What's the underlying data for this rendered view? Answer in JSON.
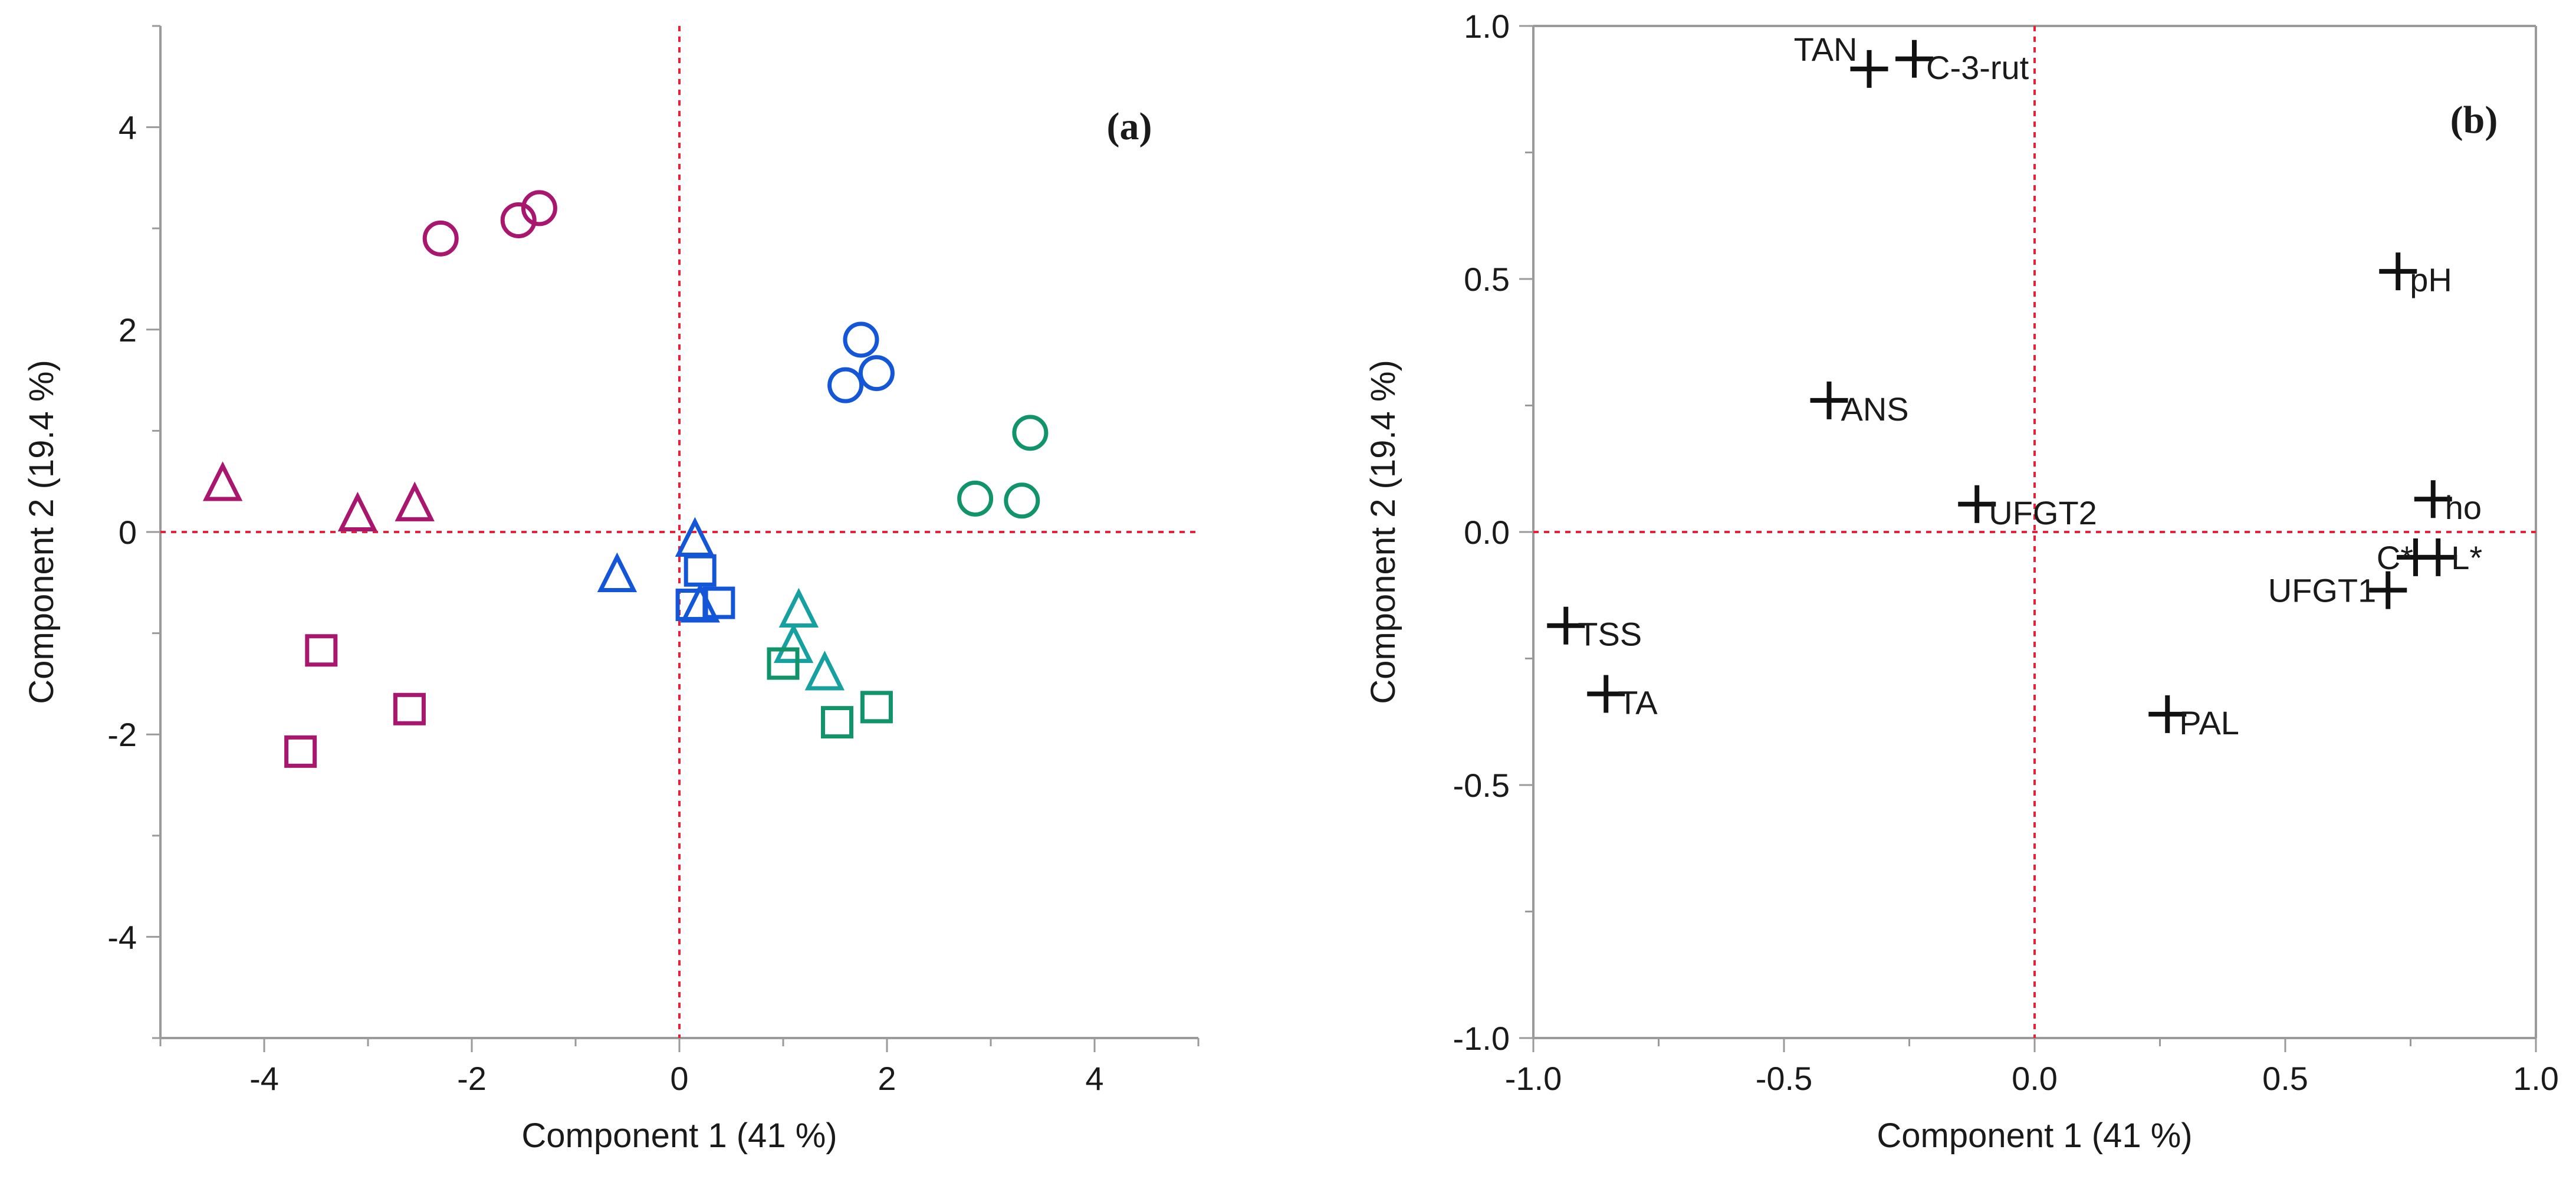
{
  "chart_data": [
    {
      "type": "scatter",
      "panel_label": "(a)",
      "title": "",
      "xlabel": "Component 1  (41 %)",
      "ylabel": "Component 2  (19.4 %)",
      "xlim": [
        -5,
        5
      ],
      "ylim": [
        -5,
        5
      ],
      "xticks": [
        -4,
        -2,
        0,
        2,
        4
      ],
      "yticks": [
        -4,
        -2,
        0,
        2,
        4
      ],
      "x_tick_labels": [
        "-4",
        "-2",
        "0",
        "2",
        "4"
      ],
      "y_tick_labels": [
        "-4",
        "-2",
        "0",
        "2",
        "4"
      ],
      "reference_lines": {
        "x": 0,
        "y": 0,
        "color": "#e8203a",
        "style": "dotted"
      },
      "colors": {
        "magenta": "#a8166e",
        "blue": "#1456d8",
        "green": "#11946a",
        "teal": "#16a0a0",
        "axis": "#9a9a9a"
      },
      "series": [
        {
          "name": "magenta-circle",
          "marker": "circle",
          "color": "#a8166e",
          "points": [
            [
              -2.3,
              2.9
            ],
            [
              -1.55,
              3.08
            ],
            [
              -1.35,
              3.2
            ]
          ]
        },
        {
          "name": "magenta-triangle",
          "marker": "triangle",
          "color": "#a8166e",
          "points": [
            [
              -4.4,
              0.45
            ],
            [
              -3.1,
              0.15
            ],
            [
              -2.55,
              0.25
            ]
          ]
        },
        {
          "name": "magenta-square",
          "marker": "square",
          "color": "#a8166e",
          "points": [
            [
              -3.45,
              -1.17
            ],
            [
              -3.65,
              -2.17
            ],
            [
              -2.6,
              -1.75
            ]
          ]
        },
        {
          "name": "blue-circle",
          "marker": "circle",
          "color": "#1456d8",
          "points": [
            [
              1.75,
              1.9
            ],
            [
              1.6,
              1.45
            ],
            [
              1.9,
              1.57
            ]
          ]
        },
        {
          "name": "blue-triangle",
          "marker": "triangle",
          "color": "#1456d8",
          "points": [
            [
              -0.6,
              -0.45
            ],
            [
              0.15,
              -0.1
            ],
            [
              0.2,
              -0.75
            ]
          ]
        },
        {
          "name": "blue-square",
          "marker": "square",
          "color": "#1456d8",
          "points": [
            [
              0.2,
              -0.38
            ],
            [
              0.12,
              -0.72
            ],
            [
              0.38,
              -0.7
            ]
          ]
        },
        {
          "name": "green-circle",
          "marker": "circle",
          "color": "#11946a",
          "points": [
            [
              3.38,
              0.98
            ],
            [
              2.85,
              0.33
            ],
            [
              3.3,
              0.31
            ]
          ]
        },
        {
          "name": "teal-triangle",
          "marker": "triangle",
          "color": "#16a0a0",
          "points": [
            [
              1.15,
              -0.8
            ],
            [
              1.1,
              -1.15
            ],
            [
              1.4,
              -1.42
            ]
          ]
        },
        {
          "name": "green-square",
          "marker": "square",
          "color": "#11946a",
          "points": [
            [
              1.0,
              -1.3
            ],
            [
              1.52,
              -1.88
            ],
            [
              1.9,
              -1.73
            ]
          ]
        }
      ]
    },
    {
      "type": "scatter",
      "panel_label": "(b)",
      "title": "",
      "xlabel": "Component 1  (41 %)",
      "ylabel": "Component 2  (19.4 %)",
      "xlim": [
        -1.0,
        1.0
      ],
      "ylim": [
        -1.0,
        1.0
      ],
      "xticks": [
        -1.0,
        -0.5,
        0.0,
        0.5,
        1.0
      ],
      "yticks": [
        -1.0,
        -0.5,
        0.0,
        0.5,
        1.0
      ],
      "x_tick_labels": [
        "-1.0",
        "-0.5",
        "0.0",
        "0.5",
        "1.0"
      ],
      "y_tick_labels": [
        "-1.0",
        "-0.5",
        "0.0",
        "0.5",
        "1.0"
      ],
      "reference_lines": {
        "x": 0,
        "y": 0,
        "color": "#e8203a",
        "style": "dotted"
      },
      "marker": "plus",
      "marker_color": "#111111",
      "points": [
        {
          "label": "TAN",
          "x": -0.33,
          "y": 0.915,
          "label_pos": "left-up"
        },
        {
          "label": "C-3-rut",
          "x": -0.24,
          "y": 0.935,
          "label_pos": "right"
        },
        {
          "label": "pH",
          "x": 0.725,
          "y": 0.515,
          "label_pos": "right"
        },
        {
          "label": "ANS",
          "x": -0.41,
          "y": 0.26,
          "label_pos": "right"
        },
        {
          "label": "UFGT2",
          "x": -0.115,
          "y": 0.055,
          "label_pos": "right"
        },
        {
          "label": "ho",
          "x": 0.795,
          "y": 0.065,
          "label_pos": "right"
        },
        {
          "label": "C*",
          "x": 0.76,
          "y": -0.05,
          "label_pos": "left"
        },
        {
          "label": "L*",
          "x": 0.805,
          "y": -0.05,
          "label_pos": "right"
        },
        {
          "label": "UFGT1",
          "x": 0.705,
          "y": -0.115,
          "label_pos": "left"
        },
        {
          "label": "TSS",
          "x": -0.935,
          "y": -0.185,
          "label_pos": "right"
        },
        {
          "label": "TA",
          "x": -0.855,
          "y": -0.32,
          "label_pos": "right"
        },
        {
          "label": "PAL",
          "x": 0.265,
          "y": -0.36,
          "label_pos": "right"
        }
      ]
    }
  ]
}
